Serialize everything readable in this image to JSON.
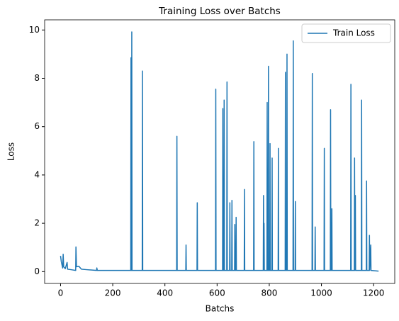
{
  "chart_data": {
    "type": "line",
    "title": "Training Loss over Batchs",
    "x_label": "Batchs",
    "y_label": "Loss",
    "xlim": [
      -61,
      1281
    ],
    "ylim": [
      -0.49,
      10.42
    ],
    "xticks": [
      0,
      200,
      400,
      600,
      800,
      1000,
      1200
    ],
    "yticks": [
      0,
      2,
      4,
      6,
      8,
      10
    ],
    "legend": "upper right",
    "series": [
      {
        "name": "Train Loss",
        "color": "#1f77b4",
        "x": [
          0,
          3,
          5,
          8,
          10,
          12,
          18,
          25,
          27,
          40,
          58,
          59,
          61,
          70,
          80,
          100,
          138,
          139,
          141,
          269,
          270,
          271,
          272,
          273,
          274,
          313,
          314,
          315,
          445,
          446,
          447,
          480,
          481,
          482,
          523,
          524,
          525,
          594,
          595,
          596,
          621,
          622,
          623,
          626,
          627,
          628,
          637,
          638,
          639,
          648,
          649,
          650,
          656,
          657,
          658,
          667,
          668,
          669,
          672,
          673,
          674,
          704,
          705,
          706,
          740,
          741,
          742,
          777,
          778,
          779,
          780,
          781,
          791,
          792,
          793,
          796,
          797,
          798,
          802,
          803,
          804,
          810,
          811,
          812,
          834,
          835,
          836,
          861,
          862,
          863,
          867,
          868,
          869,
          891,
          892,
          893,
          899,
          900,
          901,
          964,
          965,
          966,
          975,
          976,
          977,
          1010,
          1011,
          1012,
          1034,
          1035,
          1036,
          1039,
          1040,
          1041,
          1112,
          1113,
          1114,
          1126,
          1127,
          1128,
          1130,
          1131,
          1153,
          1154,
          1155,
          1172,
          1173,
          1174,
          1183,
          1184,
          1185,
          1189,
          1190,
          1219
        ],
        "values": [
          0.65,
          0.4,
          0.3,
          0.15,
          0.72,
          0.2,
          0.12,
          0.38,
          0.1,
          0.08,
          0.05,
          1.02,
          0.2,
          0.22,
          0.1,
          0.08,
          0.05,
          0.15,
          0.05,
          0.05,
          8.85,
          0.05,
          0.05,
          9.92,
          0.05,
          0.05,
          8.3,
          0.05,
          0.05,
          5.6,
          0.05,
          0.05,
          1.1,
          0.05,
          0.05,
          2.85,
          0.05,
          0.05,
          7.55,
          0.05,
          0.05,
          6.75,
          0.05,
          0.05,
          7.1,
          0.05,
          0.05,
          7.85,
          0.05,
          0.05,
          2.85,
          0.05,
          0.05,
          2.95,
          0.05,
          0.05,
          1.95,
          0.05,
          0.05,
          2.25,
          0.05,
          0.05,
          3.4,
          0.05,
          0.05,
          5.38,
          0.05,
          0.05,
          3.15,
          0.05,
          2.0,
          0.05,
          0.05,
          7.0,
          0.05,
          0.05,
          8.5,
          0.05,
          0.05,
          5.3,
          0.05,
          0.05,
          4.7,
          0.05,
          0.05,
          5.1,
          0.05,
          0.05,
          8.25,
          0.05,
          0.05,
          9.0,
          0.05,
          0.05,
          9.55,
          0.05,
          0.05,
          2.9,
          0.05,
          0.05,
          8.2,
          0.05,
          0.05,
          1.85,
          0.05,
          0.05,
          5.1,
          0.05,
          0.05,
          6.7,
          0.05,
          0.05,
          2.6,
          0.05,
          0.05,
          7.75,
          0.05,
          0.05,
          4.7,
          0.05,
          3.15,
          0.05,
          0.05,
          7.1,
          0.05,
          0.05,
          3.75,
          0.05,
          0.05,
          1.5,
          0.05,
          1.1,
          0.05,
          0.02
        ]
      }
    ]
  }
}
